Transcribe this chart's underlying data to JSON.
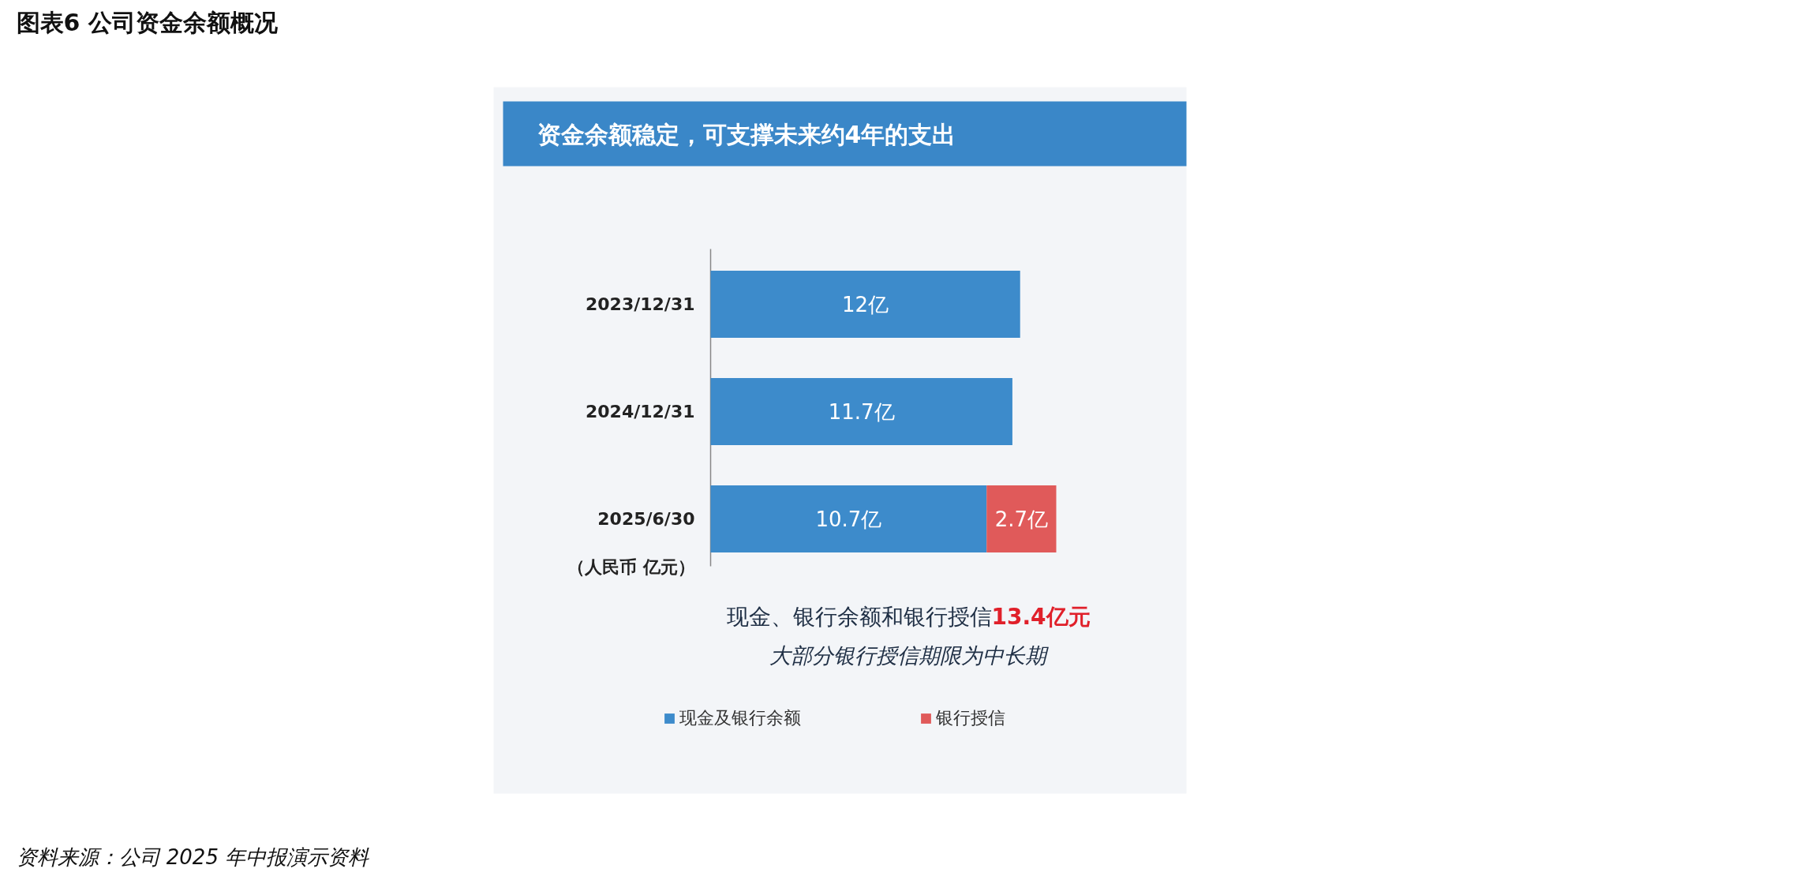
{
  "chart_data": {
    "type": "bar",
    "orientation": "horizontal",
    "stacked": true,
    "title": "图表6 公司资金余额概况",
    "subtitle": "资金余额稳定，可支撑未来约4年的支出",
    "categories": [
      "2023/12/31",
      "2024/12/31",
      "2025/6/30"
    ],
    "series": [
      {
        "name": "现金及银行余额",
        "color": "#3d8bcb",
        "values": [
          12,
          11.7,
          10.7
        ],
        "value_labels": [
          "12亿",
          "11.7亿",
          "10.7亿"
        ]
      },
      {
        "name": "银行授信",
        "color": "#e05a5a",
        "values": [
          null,
          null,
          2.7
        ],
        "value_labels": [
          null,
          null,
          "2.7亿"
        ]
      }
    ],
    "legend": "bottom",
    "annotations": [
      "（人民币 亿元）",
      "现金、银行余额和银行授信13.4亿元",
      "大部分银行授信期限为中长期",
      "资料来源：公司 2025 年中报演示资料"
    ]
  }
}
